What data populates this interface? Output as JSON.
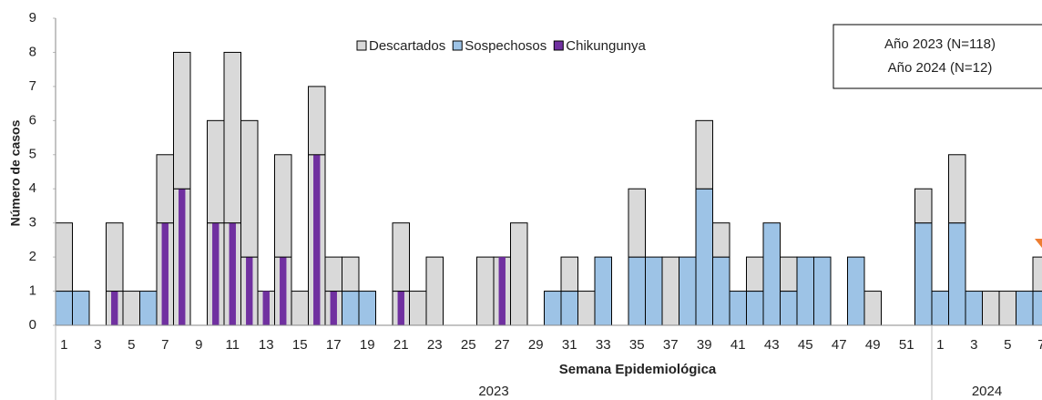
{
  "chart_data": {
    "type": "stacked_bar",
    "y_label": "Número de casos",
    "x_label": "Semana Epidemiológica",
    "x_groups": [
      "2023",
      "2024"
    ],
    "annotations": [
      "Año 2023 (N=118)",
      "Año 2024 (N=12)"
    ],
    "categories": [
      "1",
      null,
      "3",
      null,
      "5",
      null,
      "7",
      null,
      "9",
      null,
      "11",
      null,
      "13",
      null,
      "15",
      null,
      "17",
      null,
      "19",
      null,
      "21",
      null,
      "23",
      null,
      "25",
      null,
      "27",
      null,
      "29",
      null,
      "31",
      null,
      "33",
      null,
      "35",
      null,
      "37",
      null,
      "39",
      null,
      "41",
      null,
      "43",
      null,
      "45",
      null,
      "47",
      null,
      "49",
      null,
      "51",
      null,
      "1",
      null,
      "3",
      null,
      "5",
      null,
      "7"
    ],
    "series": [
      {
        "name": "Descartados",
        "color": "#d9d9d9",
        "values": [
          2,
          0,
          0,
          2,
          1,
          0,
          2,
          4,
          0,
          3,
          5,
          4,
          0,
          3,
          1,
          2,
          1,
          1,
          0,
          0,
          2,
          1,
          2,
          0,
          0,
          2,
          0,
          3,
          0,
          0,
          1,
          1,
          0,
          0,
          2,
          0,
          2,
          0,
          2,
          1,
          0,
          1,
          0,
          1,
          0,
          0,
          0,
          0,
          1,
          0,
          0,
          1,
          0,
          2,
          0,
          1,
          1,
          0,
          1
        ]
      },
      {
        "name": "Sospechosos",
        "color": "#9dc3e6",
        "values": [
          1,
          1,
          0,
          0,
          0,
          1,
          0,
          0,
          0,
          0,
          0,
          0,
          0,
          0,
          0,
          0,
          0,
          1,
          1,
          0,
          0,
          0,
          0,
          0,
          0,
          0,
          0,
          0,
          0,
          1,
          1,
          0,
          2,
          0,
          2,
          2,
          0,
          2,
          4,
          2,
          1,
          1,
          3,
          1,
          2,
          2,
          0,
          2,
          0,
          0,
          0,
          3,
          1,
          3,
          1,
          0,
          0,
          1,
          1
        ]
      },
      {
        "name": "Chikungunya",
        "color": "#7030a0",
        "values": [
          0,
          0,
          0,
          1,
          0,
          0,
          3,
          4,
          0,
          3,
          3,
          2,
          1,
          2,
          0,
          5,
          1,
          0,
          0,
          0,
          1,
          0,
          0,
          0,
          0,
          0,
          2,
          0,
          0,
          0,
          0,
          0,
          0,
          0,
          0,
          0,
          0,
          0,
          0,
          0,
          0,
          0,
          0,
          0,
          0,
          0,
          0,
          0,
          0,
          0,
          0,
          0,
          0,
          0,
          0,
          0,
          0,
          0,
          0
        ]
      }
    ],
    "ylim": [
      0,
      9
    ],
    "yticks": [
      0,
      1,
      2,
      3,
      4,
      5,
      6,
      7,
      8,
      9
    ]
  }
}
